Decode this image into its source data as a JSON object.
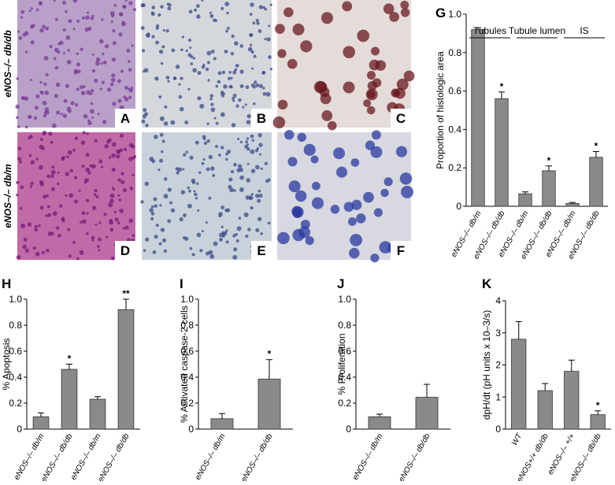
{
  "micrographs": {
    "row_labels": [
      "eNOS–/– db/db",
      "eNOS–/– db/m"
    ],
    "panels": [
      "A",
      "B",
      "C",
      "D",
      "E",
      "F"
    ]
  },
  "chart_data": [
    {
      "type": "bar",
      "panel": "G",
      "ylabel": "Proportion of histologic area",
      "categories": [
        "eNOS–/– db/m",
        "eNOS–/– db/db",
        "eNOS–/– db/m",
        "eNOS–/– db/db",
        "eNOS–/– db/m",
        "eNOS–/– db/db"
      ],
      "values": [
        0.92,
        0.56,
        0.065,
        0.185,
        0.015,
        0.255
      ],
      "errors": [
        0.01,
        0.035,
        0.01,
        0.025,
        0.005,
        0.03
      ],
      "significance": [
        null,
        "*",
        null,
        "*",
        null,
        "*"
      ],
      "groups": [
        "Tubules",
        "Tubule lumen",
        "IS"
      ],
      "color": "#8a8a8a",
      "ylim": [
        0,
        1
      ],
      "yticks": [
        0,
        0.2,
        0.4,
        0.6,
        0.8,
        {
          "value": 1,
          "label": "1.0"
        }
      ]
    },
    {
      "type": "bar",
      "panel": "H",
      "ylabel": "% Apoptosis",
      "categories": [
        "eNOS–/– db/m",
        "eNOS–/– db/db",
        "eNOS–/– db/m",
        "eNOS–/– db/db"
      ],
      "values": [
        0.095,
        0.46,
        0.23,
        0.92
      ],
      "errors": [
        0.03,
        0.04,
        0.02,
        0.08
      ],
      "significance": [
        null,
        "*",
        null,
        "**"
      ],
      "color": "#8a8a8a",
      "ylim": [
        0,
        1
      ],
      "yticks": [
        0,
        0.2,
        0.4,
        0.6,
        0.8,
        {
          "value": 1,
          "label": "1.0"
        }
      ]
    },
    {
      "type": "bar",
      "panel": "I",
      "ylabel": "% Activated caspase-2 cells",
      "categories": [
        "eNOS–/– db/m",
        "eNOS–/– db/db"
      ],
      "values": [
        0.08,
        0.385
      ],
      "errors": [
        0.04,
        0.15
      ],
      "significance": [
        null,
        "*"
      ],
      "color": "#8a8a8a",
      "ylim": [
        0,
        1
      ],
      "yticks": [
        0,
        0.2,
        0.4,
        0.6,
        0.8,
        {
          "value": 1,
          "label": "1.0"
        }
      ]
    },
    {
      "type": "bar",
      "panel": "J",
      "ylabel": "% Proliferation",
      "categories": [
        "eNOS–/– db/m",
        "eNOS–/– db/db"
      ],
      "values": [
        0.095,
        0.245
      ],
      "errors": [
        0.02,
        0.1
      ],
      "color": "#8a8a8a",
      "ylim": [
        0,
        1
      ],
      "yticks": [
        0,
        0.2,
        0.4,
        0.6,
        0.8,
        {
          "value": 1,
          "label": "1.0"
        }
      ]
    },
    {
      "type": "bar",
      "panel": "K",
      "ylabel": "dpH/dt (pH units x 10–3/s)",
      "categories": [
        "WT",
        "eNOS+/+ db/db",
        "eNOS–/– +/+",
        "eNOS–/– db/db"
      ],
      "values": [
        2.8,
        1.2,
        1.8,
        0.45
      ],
      "errors": [
        0.55,
        0.22,
        0.35,
        0.12
      ],
      "significance": [
        null,
        null,
        null,
        "*"
      ],
      "color": "#8a8a8a",
      "ylim": [
        0,
        4
      ],
      "yticks": [
        0,
        1,
        2,
        3,
        4
      ]
    }
  ]
}
